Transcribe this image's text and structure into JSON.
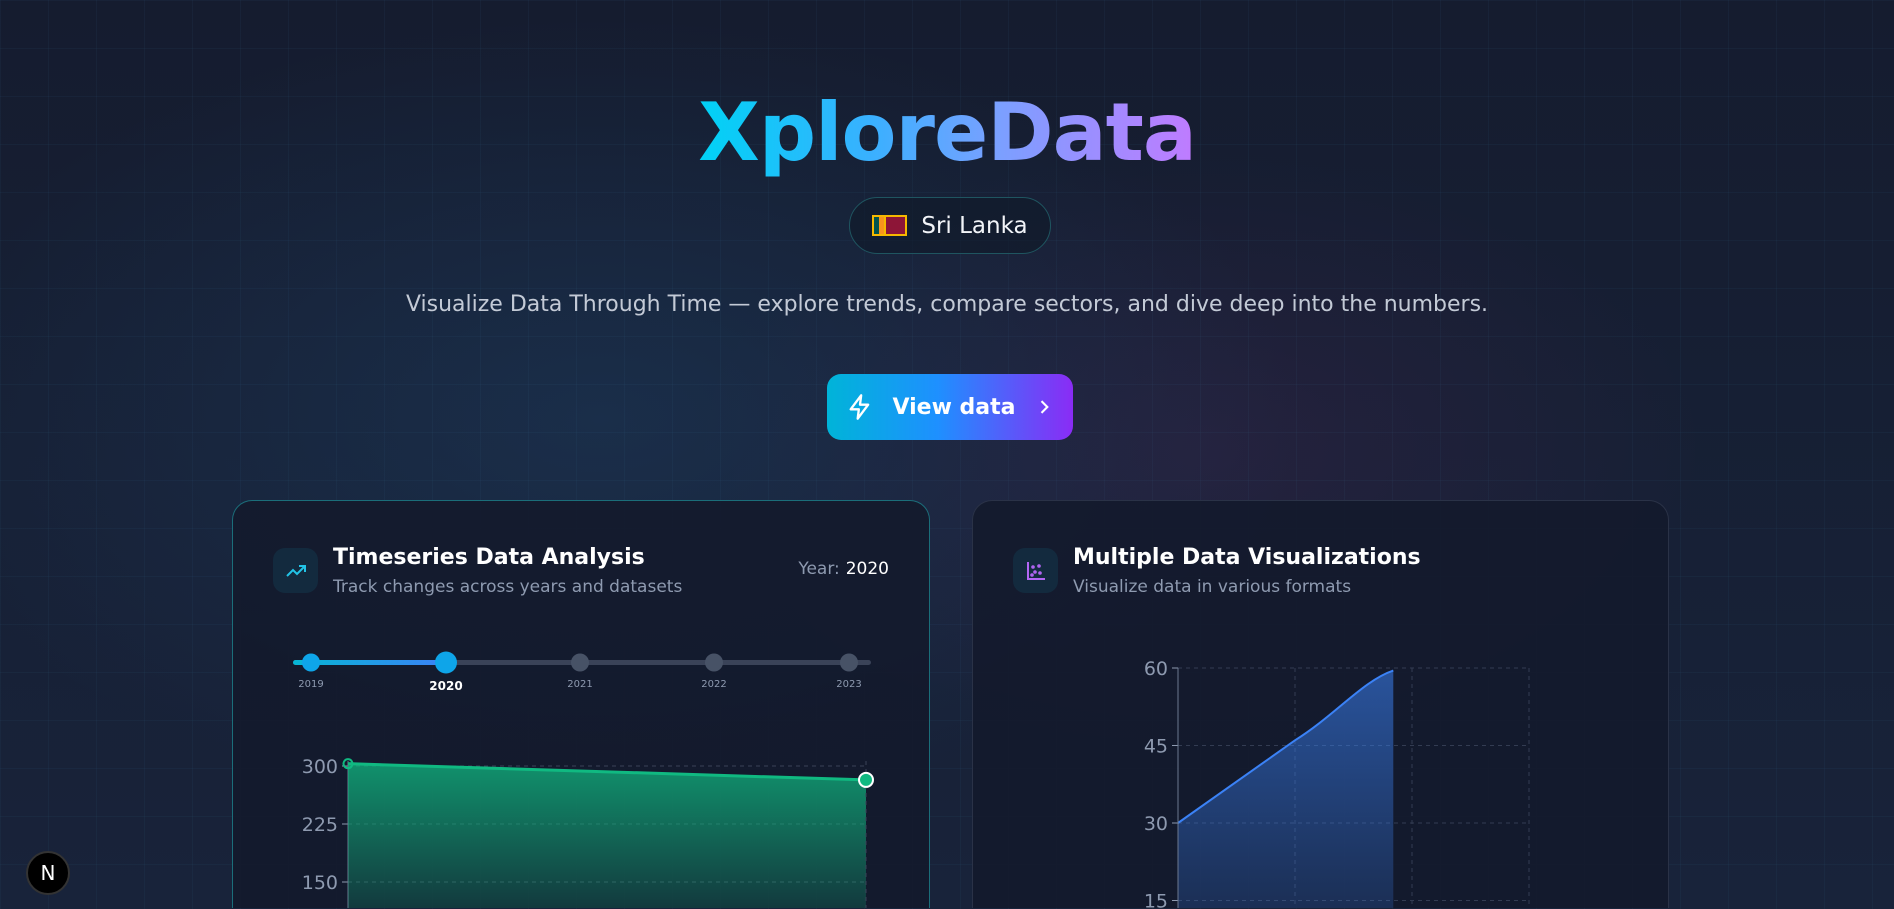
{
  "hero": {
    "title": "XploreData",
    "country": "Sri Lanka",
    "flag_icon": "sri-lanka-flag",
    "subtitle": "Visualize Data Through Time — explore trends, compare sectors, and dive deep into the numbers.",
    "cta_label": "View data"
  },
  "timeseries_card": {
    "title": "Timeseries Data Analysis",
    "subtitle": "Track changes across years and datasets",
    "year_label": "Year:",
    "year_value": "2020",
    "timeline": [
      "2019",
      "2020",
      "2021",
      "2022",
      "2023"
    ],
    "selected_index": 1
  },
  "viz_card": {
    "title": "Multiple Data Visualizations",
    "subtitle": "Visualize data in various formats"
  },
  "badge": "N",
  "chart_data": [
    {
      "type": "area",
      "x": [
        "2019",
        "2020"
      ],
      "values": [
        303,
        282
      ],
      "yticks": [
        "300",
        "225",
        "150"
      ],
      "color": "#10b981",
      "grid": true
    },
    {
      "type": "area",
      "x": [
        0,
        1,
        1.84
      ],
      "values": [
        30,
        46,
        59.5
      ],
      "yticks": [
        "60",
        "45",
        "30",
        "15"
      ],
      "color": "#3b82f6",
      "grid": true
    }
  ]
}
